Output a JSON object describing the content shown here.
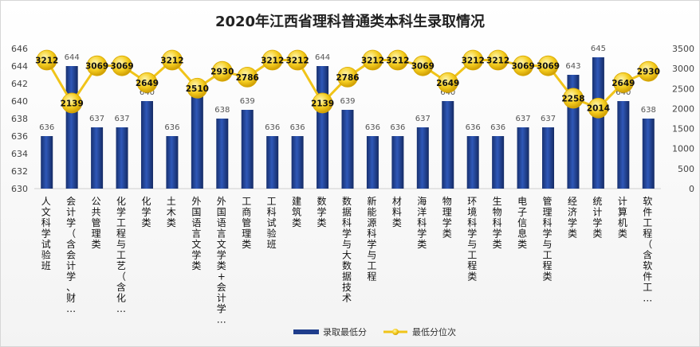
{
  "chart_data": {
    "type": "bar",
    "title": "2020年江西省理科普通类本科生录取情况",
    "categories": [
      "人文科学试验班",
      "会计学（含会计学、财…",
      "公共管理类",
      "化学工程与工艺（含化…",
      "化学类",
      "土木类",
      "外国语言文学类",
      "外国语言文学类+会计学…",
      "工商管理类",
      "工科试验班",
      "建筑类",
      "数学类",
      "数据科学与大数据技术",
      "新能源科学与工程",
      "材料类",
      "海洋科学类",
      "物理学类",
      "环境科学与工程类",
      "生物科学类",
      "电子信息类",
      "管理科学与工程类",
      "经济学类",
      "统计学类",
      "计算机类",
      "软件工程（含软件工…"
    ],
    "series": [
      {
        "name": "录取最低分",
        "type": "bar",
        "axis": "left",
        "color": "#1f3d8c",
        "values": [
          636,
          644,
          637,
          637,
          640,
          636,
          641,
          638,
          639,
          636,
          636,
          644,
          639,
          636,
          636,
          637,
          640,
          636,
          636,
          637,
          637,
          643,
          645,
          640,
          638
        ]
      },
      {
        "name": "最低分位次",
        "type": "line",
        "axis": "right",
        "color": "#f0c419",
        "values": [
          3212,
          2139,
          3069,
          3069,
          2649,
          3212,
          2510,
          2930,
          2786,
          3212,
          3212,
          2139,
          2786,
          3212,
          3212,
          3069,
          2649,
          3212,
          3212,
          3069,
          3069,
          2258,
          2014,
          2649,
          2930
        ]
      }
    ],
    "y_left": {
      "min": 630,
      "max": 646,
      "step": 2,
      "ticks": [
        "630",
        "632",
        "634",
        "636",
        "638",
        "640",
        "642",
        "644",
        "646"
      ]
    },
    "y_right": {
      "min": 0,
      "max": 3500,
      "step": 500,
      "ticks": [
        "0",
        "500",
        "1000",
        "1500",
        "2000",
        "2500",
        "3000",
        "3500"
      ]
    },
    "legend_position": "bottom",
    "grid": false
  }
}
